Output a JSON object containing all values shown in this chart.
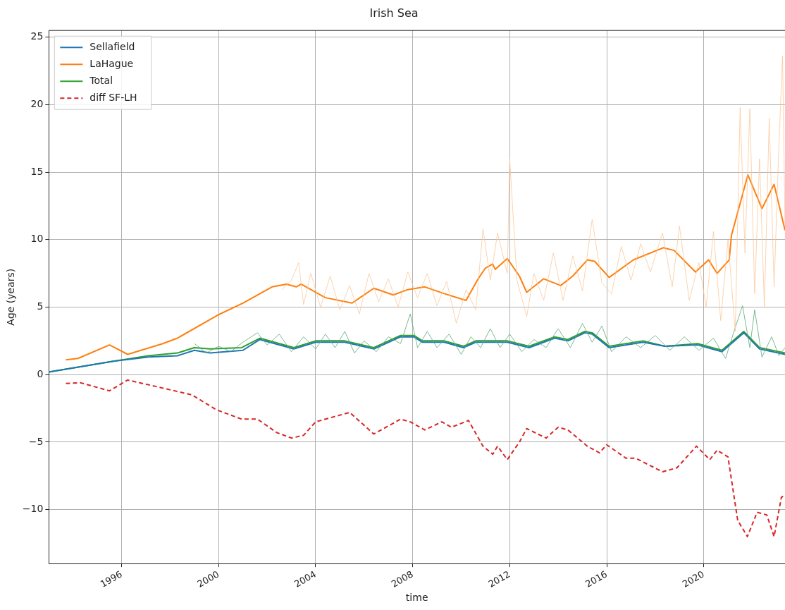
{
  "chart_data": {
    "type": "line",
    "title": "Irish Sea",
    "xlabel": "time",
    "ylabel": "Age (years)",
    "xlim": [
      1993.0,
      2023.35
    ],
    "xticks": [
      1996,
      2000,
      2004,
      2008,
      2012,
      2016,
      2020
    ],
    "ylim": [
      -14,
      25.5
    ],
    "yticks": [
      -10,
      -5,
      0,
      5,
      10,
      15,
      20,
      25
    ],
    "grid": true,
    "legend": "top left",
    "marker": "none",
    "series": [
      {
        "color": "#fbc89a",
        "x": [
          2002.6,
          2003.0,
          2003.3,
          2003.5,
          2003.8,
          2004.2,
          2004.6,
          2005.0,
          2005.4,
          2005.8,
          2006.2,
          2006.6,
          2007.0,
          2007.4,
          2007.8,
          2008.2,
          2008.6,
          2009.0,
          2009.4,
          2009.8,
          2010.2,
          2010.6,
          2010.9,
          2011.2,
          2011.5,
          2011.9,
          2012.0,
          2012.3,
          2012.7,
          2013.0,
          2013.4,
          2013.8,
          2014.2,
          2014.6,
          2015.0,
          2015.4,
          2015.8,
          2016.2,
          2016.6,
          2017.0,
          2017.4,
          2017.8,
          2018.3,
          2018.7,
          2019.0,
          2019.4,
          2019.8,
          2020.1,
          2020.4,
          2020.7,
          2021.0,
          2021.3,
          2021.5,
          2021.7,
          2021.9,
          2022.1,
          2022.3,
          2022.5,
          2022.7,
          2022.9,
          2023.1,
          2023.25,
          2023.35
        ],
        "values": [
          6.3,
          7.0,
          8.3,
          5.2,
          7.5,
          5.0,
          7.3,
          4.8,
          6.6,
          4.5,
          7.5,
          5.4,
          7.1,
          5.0,
          7.6,
          5.7,
          7.5,
          5.1,
          6.9,
          3.8,
          6.3,
          4.8,
          10.8,
          7.0,
          10.5,
          7.5,
          16.0,
          7.0,
          4.3,
          7.5,
          5.5,
          9.0,
          5.5,
          8.8,
          6.2,
          11.5,
          6.8,
          6.0,
          9.5,
          7.0,
          9.7,
          7.6,
          10.5,
          6.5,
          11.0,
          5.5,
          8.3,
          5.0,
          10.6,
          4.0,
          10.0,
          3.2,
          19.8,
          9.0,
          19.7,
          6.0,
          16.0,
          5.0,
          19.0,
          6.5,
          17.0,
          23.6,
          11.0
        ]
      },
      {
        "color": "#5aa874",
        "x": [
          1999.0,
          1999.5,
          2000.0,
          2000.5,
          2001.0,
          2001.6,
          2002.0,
          2002.5,
          2003.0,
          2003.5,
          2004.0,
          2004.4,
          2004.8,
          2005.2,
          2005.6,
          2006.0,
          2006.5,
          2007.0,
          2007.5,
          2007.9,
          2008.2,
          2008.6,
          2009.0,
          2009.5,
          2010.0,
          2010.4,
          2010.8,
          2011.2,
          2011.6,
          2012.0,
          2012.5,
          2013.0,
          2013.5,
          2014.0,
          2014.5,
          2015.0,
          2015.4,
          2015.8,
          2016.2,
          2016.8,
          2017.4,
          2018.0,
          2018.6,
          2019.2,
          2019.8,
          2020.4,
          2020.9,
          2021.3,
          2021.6,
          2021.9,
          2022.1,
          2022.4,
          2022.8,
          2023.1,
          2023.35
        ],
        "values": [
          2.3,
          1.6,
          2.1,
          1.7,
          2.4,
          3.1,
          2.2,
          3.0,
          1.7,
          2.8,
          1.9,
          3.0,
          2.0,
          3.2,
          1.6,
          2.5,
          1.7,
          2.8,
          2.3,
          4.5,
          2.0,
          3.2,
          2.0,
          3.0,
          1.5,
          2.8,
          2.0,
          3.4,
          2.0,
          3.0,
          1.7,
          2.6,
          2.0,
          3.4,
          2.0,
          3.8,
          2.4,
          3.6,
          1.7,
          2.8,
          2.0,
          2.9,
          1.8,
          2.8,
          1.8,
          2.7,
          1.2,
          3.5,
          5.1,
          2.0,
          4.8,
          1.3,
          2.8,
          1.4,
          2.0
        ]
      },
      {
        "name": "Sellafield",
        "color": "#1f77b4",
        "x": [
          1993.0,
          1995.7,
          1997.1,
          1998.3,
          1999.0,
          1999.65,
          2001.0,
          2001.7,
          2003.1,
          2004.0,
          2005.2,
          2006.4,
          2007.5,
          2008.05,
          2008.4,
          2009.3,
          2010.1,
          2010.6,
          2011.9,
          2012.8,
          2013.85,
          2014.4,
          2015.1,
          2015.4,
          2016.1,
          2017.5,
          2018.4,
          2019.75,
          2020.75,
          2021.65,
          2022.3,
          2023.35
        ],
        "values": [
          0.2,
          1.0,
          1.3,
          1.4,
          1.8,
          1.6,
          1.8,
          2.6,
          1.9,
          2.4,
          2.4,
          1.9,
          2.8,
          2.8,
          2.4,
          2.4,
          2.0,
          2.4,
          2.4,
          2.0,
          2.7,
          2.5,
          3.1,
          3.0,
          2.0,
          2.4,
          2.1,
          2.2,
          1.7,
          3.1,
          1.9,
          1.5
        ]
      },
      {
        "name": "LaHague",
        "color": "#ff7f0e",
        "x": [
          1993.7,
          1994.2,
          1995.5,
          1996.25,
          1997.7,
          1998.3,
          1999.95,
          2001.0,
          2002.2,
          2002.8,
          2003.2,
          2003.4,
          2004.4,
          2005.5,
          2006.4,
          2007.2,
          2007.8,
          2008.5,
          2009.3,
          2010.2,
          2010.7,
          2011.0,
          2011.3,
          2011.4,
          2011.9,
          2012.4,
          2012.7,
          2013.4,
          2014.1,
          2014.6,
          2015.2,
          2015.5,
          2016.1,
          2017.1,
          2018.33,
          2018.78,
          2019.66,
          2020.2,
          2020.55,
          2021.05,
          2021.14,
          2021.82,
          2022.4,
          2022.9,
          2023.35
        ],
        "values": [
          1.1,
          1.2,
          2.2,
          1.5,
          2.3,
          2.7,
          4.4,
          5.3,
          6.5,
          6.7,
          6.5,
          6.7,
          5.7,
          5.3,
          6.4,
          5.9,
          6.3,
          6.5,
          6.0,
          5.5,
          7.1,
          7.9,
          8.2,
          7.8,
          8.6,
          7.3,
          6.1,
          7.1,
          6.6,
          7.3,
          8.5,
          8.4,
          7.2,
          8.5,
          9.4,
          9.2,
          7.6,
          8.5,
          7.5,
          8.5,
          10.3,
          14.8,
          12.3,
          14.1,
          10.7
        ]
      },
      {
        "name": "Total",
        "color": "#2ca02c",
        "x": [
          1993.0,
          1995.7,
          1997.1,
          1998.3,
          1999.0,
          1999.65,
          2000.95,
          2001.7,
          2003.1,
          2004.0,
          2005.2,
          2006.4,
          2007.5,
          2008.05,
          2008.4,
          2009.3,
          2010.1,
          2010.6,
          2011.9,
          2012.8,
          2013.85,
          2014.4,
          2015.1,
          2015.4,
          2016.1,
          2017.5,
          2018.4,
          2019.75,
          2020.75,
          2021.65,
          2022.3,
          2023.35
        ],
        "values": [
          0.2,
          1.0,
          1.4,
          1.6,
          2.0,
          1.9,
          2.0,
          2.7,
          2.0,
          2.5,
          2.5,
          2.0,
          2.9,
          2.9,
          2.5,
          2.5,
          2.1,
          2.5,
          2.5,
          2.1,
          2.8,
          2.6,
          3.2,
          3.1,
          2.1,
          2.5,
          2.1,
          2.3,
          1.8,
          3.2,
          2.0,
          1.6
        ]
      },
      {
        "name": "diff SF-LH",
        "color": "#d62728",
        "line_style": "dashed",
        "x": [
          1993.7,
          1994.3,
          1995.5,
          1996.25,
          1997.7,
          1998.9,
          1999.9,
          2000.95,
          2001.6,
          2002.4,
          2003.0,
          2003.5,
          2004.0,
          2005.4,
          2006.4,
          2007.5,
          2007.9,
          2008.5,
          2009.2,
          2009.6,
          2010.3,
          2010.9,
          2011.3,
          2011.5,
          2011.9,
          2012.4,
          2012.7,
          2013.5,
          2014.0,
          2014.4,
          2015.2,
          2015.7,
          2016.0,
          2016.8,
          2017.2,
          2018.3,
          2018.9,
          2019.7,
          2020.25,
          2020.55,
          2021.0,
          2021.4,
          2021.8,
          2022.2,
          2022.6,
          2022.9,
          2023.2,
          2023.35
        ],
        "values": [
          -0.65,
          -0.6,
          -1.2,
          -0.4,
          -1.0,
          -1.5,
          -2.6,
          -3.3,
          -3.3,
          -4.3,
          -4.7,
          -4.5,
          -3.5,
          -2.8,
          -4.4,
          -3.3,
          -3.5,
          -4.1,
          -3.5,
          -3.9,
          -3.4,
          -5.3,
          -5.9,
          -5.3,
          -6.3,
          -5.0,
          -4.0,
          -4.7,
          -3.9,
          -4.1,
          -5.3,
          -5.8,
          -5.2,
          -6.2,
          -6.2,
          -7.2,
          -6.9,
          -5.3,
          -6.3,
          -5.6,
          -6.1,
          -10.8,
          -12.0,
          -10.2,
          -10.4,
          -12.0,
          -9.1,
          -8.9
        ]
      }
    ]
  }
}
